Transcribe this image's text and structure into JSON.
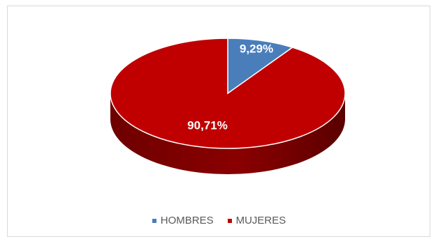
{
  "chart_data": {
    "type": "pie",
    "title": "",
    "categories": [
      "HOMBRES",
      "MUJERES"
    ],
    "values": [
      9.29,
      90.71
    ],
    "labels": [
      "9,29%",
      "90,71%"
    ],
    "colors": [
      "#4a7ebb",
      "#c00000"
    ],
    "legend_position": "bottom",
    "style": "3d"
  }
}
